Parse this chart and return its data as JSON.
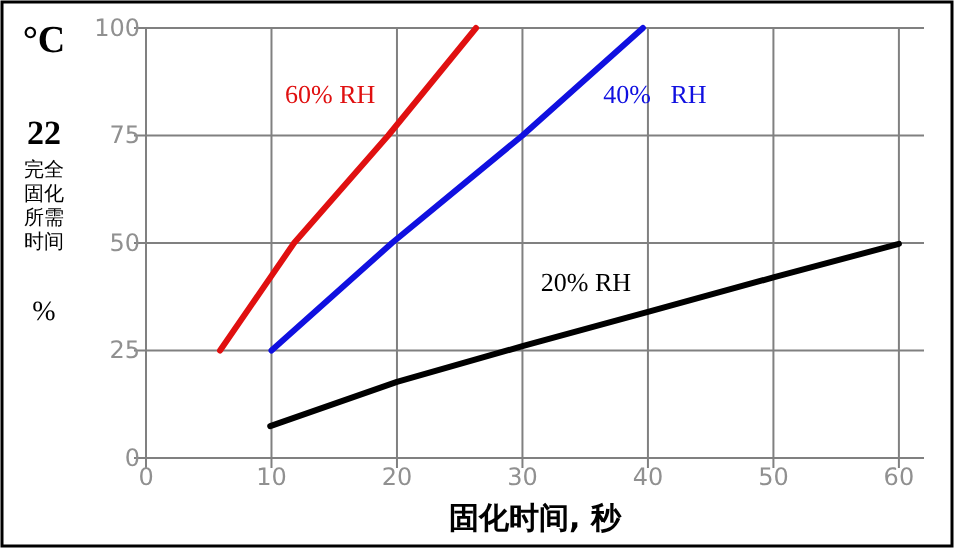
{
  "chart_data": {
    "type": "line",
    "xlabel": "固化时间, 秒",
    "ylabel": "完全固化所需时间",
    "annotations": [
      "°C",
      "22",
      "%"
    ],
    "series": [
      {
        "name": "60% RH",
        "color": "#e01010",
        "x": [
          5.9,
          11.8,
          19.3,
          26.3
        ],
        "values": [
          25,
          50,
          75,
          100
        ]
      },
      {
        "name": "40%   RH",
        "color": "#1010e0",
        "x": [
          10,
          19.6,
          30,
          39.6
        ],
        "values": [
          25,
          50,
          75,
          100
        ]
      },
      {
        "name": "20% RH",
        "color": "#000000",
        "x": [
          9.9,
          20,
          30,
          40,
          50,
          60
        ],
        "values": [
          7.4,
          17.7,
          26,
          34,
          42,
          49.8
        ]
      }
    ],
    "xlim": [
      0,
      62
    ],
    "xticks": [
      0,
      10,
      20,
      30,
      40,
      50,
      60
    ],
    "ylim": [
      0,
      100
    ],
    "yticks": [
      0,
      25,
      50,
      75,
      100
    ],
    "grid": true,
    "marker": "none",
    "line_style": "solid"
  }
}
